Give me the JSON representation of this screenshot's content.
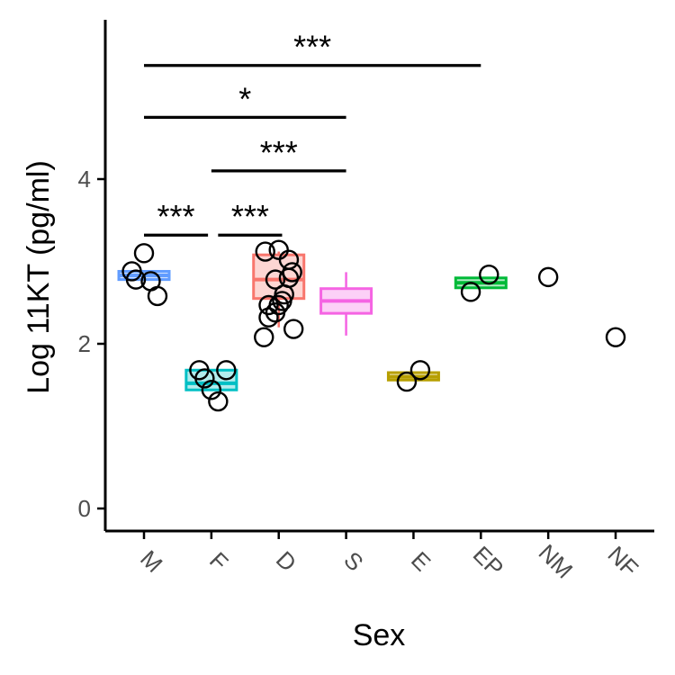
{
  "chart_data": {
    "type": "boxplot",
    "xlabel": "Sex",
    "ylabel": "Log 11KT (pg/ml)",
    "ylim": [
      -0.3,
      6.0
    ],
    "yticks": [
      0,
      2,
      4
    ],
    "grid": false,
    "legend": "none",
    "categories": [
      "M",
      "F",
      "D",
      "S",
      "E",
      "EP",
      "NM",
      "NF"
    ],
    "groups": [
      {
        "category": "M",
        "color": "#619cff",
        "box": {
          "q1": 2.78,
          "median": 2.83,
          "q3": 2.88,
          "whisker_low": 2.78,
          "whisker_high": 2.88
        },
        "points": [
          [
            0.82,
            2.88
          ],
          [
            1.0,
            3.1
          ],
          [
            0.88,
            2.78
          ],
          [
            1.1,
            2.76
          ],
          [
            1.2,
            2.58
          ]
        ]
      },
      {
        "category": "F",
        "color": "#00bfc4",
        "box": {
          "q1": 1.44,
          "median": 1.52,
          "q3": 1.68,
          "whisker_low": 1.44,
          "whisker_high": 1.68
        },
        "points": [
          [
            1.82,
            1.68
          ],
          [
            1.9,
            1.58
          ],
          [
            2.0,
            1.44
          ],
          [
            2.1,
            1.3
          ],
          [
            2.22,
            1.68
          ]
        ]
      },
      {
        "category": "D",
        "color": "#f8766d",
        "box": {
          "q1": 2.55,
          "median": 2.78,
          "q3": 3.08,
          "whisker_low": 2.2,
          "whisker_high": 3.12
        },
        "points": [
          [
            2.8,
            3.12
          ],
          [
            3.0,
            3.14
          ],
          [
            3.15,
            3.02
          ],
          [
            2.95,
            2.78
          ],
          [
            3.08,
            2.6
          ],
          [
            2.85,
            2.47
          ],
          [
            3.22,
            2.18
          ]
        ]
      },
      {
        "category": "S",
        "color": "#f564e3",
        "box": {
          "q1": 2.37,
          "median": 2.52,
          "q3": 2.67,
          "whisker_low": 2.1,
          "whisker_high": 2.87
        },
        "points": [
          [
            3.2,
            2.87
          ],
          [
            3.15,
            2.8
          ],
          [
            3.05,
            2.52
          ],
          [
            3.0,
            2.47
          ],
          [
            2.95,
            2.38
          ],
          [
            2.85,
            2.32
          ],
          [
            2.78,
            2.08
          ]
        ]
      },
      {
        "category": "E",
        "color": "#b79f00",
        "box": {
          "q1": 1.56,
          "median": 1.6,
          "q3": 1.65,
          "whisker_low": 1.56,
          "whisker_high": 1.65
        },
        "points": [
          [
            4.9,
            1.54
          ],
          [
            5.1,
            1.68
          ]
        ]
      },
      {
        "category": "EP",
        "color": "#00ba38",
        "box": {
          "q1": 2.68,
          "median": 2.74,
          "q3": 2.8,
          "whisker_low": 2.68,
          "whisker_high": 2.8
        },
        "points": [
          [
            5.85,
            2.63
          ],
          [
            6.12,
            2.84
          ]
        ]
      },
      {
        "category": "NM",
        "color": "#00c08b",
        "box": null,
        "points": [
          [
            7.0,
            2.81
          ]
        ]
      },
      {
        "category": "NF",
        "color": "#c77cff",
        "box": null,
        "points": [
          [
            8.0,
            2.08
          ]
        ]
      }
    ],
    "significance": [
      {
        "from": 1,
        "to": 6,
        "y": 5.38,
        "label": "***"
      },
      {
        "from": 1,
        "to": 4,
        "y": 4.75,
        "label": "*"
      },
      {
        "from": 2,
        "to": 4,
        "y": 4.1,
        "label": "***"
      },
      {
        "from": 1,
        "to": 1.95,
        "y": 3.32,
        "label": "***"
      },
      {
        "from": 2.1,
        "to": 3.05,
        "y": 3.32,
        "label": "***"
      }
    ]
  }
}
